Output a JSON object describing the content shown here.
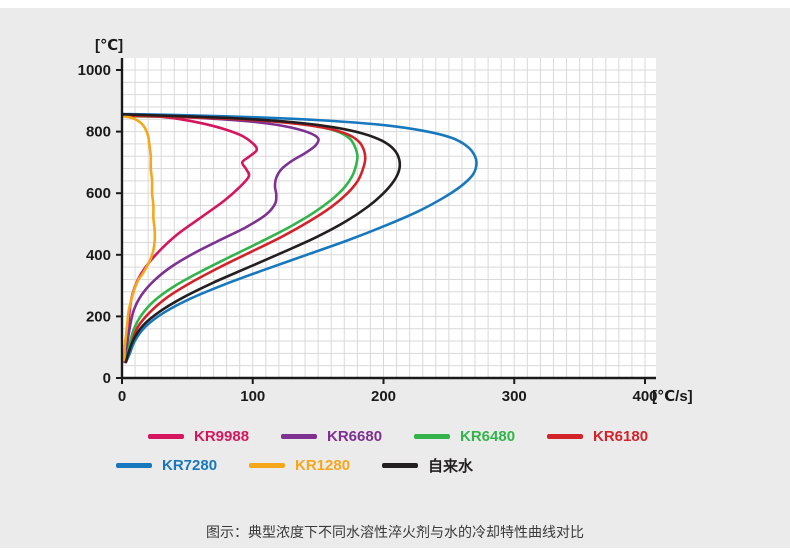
{
  "page": {
    "caption": "图示：典型浓度下不同水溶性淬火剂与水的冷却特性曲线对比",
    "background_color": "#ebebeb",
    "plot_background_color": "#ffffff"
  },
  "chart_data": {
    "type": "line",
    "title": "",
    "xlabel": "[℃/s]",
    "ylabel": "[℃]",
    "xlim": [
      0,
      400
    ],
    "ylim": [
      0,
      1000
    ],
    "x_ticks": [
      0,
      100,
      200,
      300,
      400
    ],
    "y_ticks": [
      0,
      200,
      400,
      600,
      800,
      1000
    ],
    "grid": {
      "on": true,
      "minor_x_step": 10,
      "minor_y_step": 40,
      "color": "#d9d9d9"
    },
    "axis_color": "#1a1a1a",
    "legend": {
      "position": "bottom",
      "rows": [
        [
          "KR9988",
          "KR6680",
          "KR6480",
          "KR6180"
        ],
        [
          "KR7280",
          "KR1280",
          "自来水"
        ]
      ]
    },
    "series": [
      {
        "name": "KR9988",
        "color": "#d5165f",
        "points": [
          [
            1,
            855
          ],
          [
            20,
            852
          ],
          [
            45,
            840
          ],
          [
            70,
            818
          ],
          [
            90,
            790
          ],
          [
            100,
            762
          ],
          [
            103,
            740
          ],
          [
            97,
            718
          ],
          [
            92,
            700
          ],
          [
            95,
            678
          ],
          [
            97,
            655
          ],
          [
            90,
            620
          ],
          [
            78,
            575
          ],
          [
            60,
            520
          ],
          [
            42,
            465
          ],
          [
            28,
            410
          ],
          [
            18,
            360
          ],
          [
            12,
            318
          ],
          [
            8,
            272
          ],
          [
            6,
            225
          ],
          [
            5,
            178
          ],
          [
            4,
            130
          ],
          [
            3,
            80
          ],
          [
            2,
            52
          ]
        ]
      },
      {
        "name": "KR6680",
        "color": "#7d3190",
        "points": [
          [
            1,
            855
          ],
          [
            30,
            850
          ],
          [
            65,
            843
          ],
          [
            100,
            832
          ],
          [
            125,
            817
          ],
          [
            142,
            798
          ],
          [
            150,
            778
          ],
          [
            148,
            755
          ],
          [
            140,
            730
          ],
          [
            130,
            705
          ],
          [
            122,
            678
          ],
          [
            118,
            650
          ],
          [
            117,
            622
          ],
          [
            118,
            595
          ],
          [
            117,
            565
          ],
          [
            110,
            530
          ],
          [
            95,
            490
          ],
          [
            75,
            448
          ],
          [
            55,
            405
          ],
          [
            38,
            362
          ],
          [
            25,
            318
          ],
          [
            15,
            270
          ],
          [
            9,
            220
          ],
          [
            6,
            165
          ],
          [
            4,
            110
          ],
          [
            3,
            55
          ]
        ]
      },
      {
        "name": "KR6480",
        "color": "#33b44a",
        "points": [
          [
            1,
            850
          ],
          [
            40,
            848
          ],
          [
            85,
            842
          ],
          [
            120,
            832
          ],
          [
            148,
            818
          ],
          [
            165,
            800
          ],
          [
            174,
            778
          ],
          [
            178,
            752
          ],
          [
            180,
            722
          ],
          [
            179,
            690
          ],
          [
            176,
            655
          ],
          [
            170,
            618
          ],
          [
            160,
            578
          ],
          [
            146,
            535
          ],
          [
            128,
            490
          ],
          [
            106,
            442
          ],
          [
            82,
            392
          ],
          [
            60,
            345
          ],
          [
            40,
            298
          ],
          [
            25,
            252
          ],
          [
            15,
            205
          ],
          [
            9,
            158
          ],
          [
            6,
            112
          ],
          [
            4,
            70
          ],
          [
            3,
            52
          ]
        ]
      },
      {
        "name": "KR6180",
        "color": "#d2232a",
        "points": [
          [
            1,
            852
          ],
          [
            45,
            847
          ],
          [
            90,
            840
          ],
          [
            128,
            828
          ],
          [
            155,
            812
          ],
          [
            172,
            792
          ],
          [
            181,
            768
          ],
          [
            185,
            740
          ],
          [
            186,
            710
          ],
          [
            184,
            675
          ],
          [
            180,
            638
          ],
          [
            172,
            598
          ],
          [
            160,
            555
          ],
          [
            143,
            508
          ],
          [
            122,
            458
          ],
          [
            98,
            408
          ],
          [
            74,
            358
          ],
          [
            52,
            308
          ],
          [
            34,
            260
          ],
          [
            21,
            212
          ],
          [
            12,
            165
          ],
          [
            8,
            120
          ],
          [
            5,
            75
          ],
          [
            3,
            52
          ]
        ]
      },
      {
        "name": "KR7280",
        "color": "#1878be",
        "points": [
          [
            1,
            857
          ],
          [
            50,
            853
          ],
          [
            105,
            846
          ],
          [
            155,
            836
          ],
          [
            198,
            822
          ],
          [
            230,
            803
          ],
          [
            252,
            780
          ],
          [
            264,
            752
          ],
          [
            270,
            720
          ],
          [
            271,
            690
          ],
          [
            268,
            658
          ],
          [
            259,
            622
          ],
          [
            245,
            583
          ],
          [
            226,
            540
          ],
          [
            201,
            494
          ],
          [
            172,
            446
          ],
          [
            140,
            398
          ],
          [
            108,
            350
          ],
          [
            78,
            303
          ],
          [
            52,
            257
          ],
          [
            32,
            212
          ],
          [
            18,
            167
          ],
          [
            10,
            122
          ],
          [
            6,
            80
          ],
          [
            3,
            52
          ]
        ]
      },
      {
        "name": "KR1280",
        "color": "#f6a71b",
        "points": [
          [
            1,
            850
          ],
          [
            6,
            846
          ],
          [
            11,
            838
          ],
          [
            15,
            826
          ],
          [
            18,
            808
          ],
          [
            20,
            785
          ],
          [
            21,
            755
          ],
          [
            22,
            720
          ],
          [
            22,
            680
          ],
          [
            23,
            640
          ],
          [
            23,
            600
          ],
          [
            24,
            560
          ],
          [
            24,
            520
          ],
          [
            25,
            480
          ],
          [
            25,
            445
          ],
          [
            24,
            415
          ],
          [
            22,
            388
          ],
          [
            19,
            362
          ],
          [
            16,
            340
          ],
          [
            13,
            322
          ],
          [
            11,
            305
          ],
          [
            9,
            282
          ],
          [
            7,
            252
          ],
          [
            5,
            215
          ],
          [
            4,
            175
          ],
          [
            3,
            135
          ],
          [
            2,
            95
          ],
          [
            2,
            58
          ]
        ]
      },
      {
        "name": "自来水",
        "color": "#231f20",
        "points": [
          [
            1,
            856
          ],
          [
            45,
            850
          ],
          [
            92,
            842
          ],
          [
            132,
            830
          ],
          [
            162,
            814
          ],
          [
            184,
            794
          ],
          [
            199,
            770
          ],
          [
            208,
            742
          ],
          [
            212,
            710
          ],
          [
            212,
            676
          ],
          [
            208,
            640
          ],
          [
            200,
            600
          ],
          [
            188,
            556
          ],
          [
            171,
            508
          ],
          [
            149,
            458
          ],
          [
            123,
            408
          ],
          [
            96,
            358
          ],
          [
            70,
            310
          ],
          [
            47,
            262
          ],
          [
            29,
            216
          ],
          [
            16,
            170
          ],
          [
            9,
            126
          ],
          [
            5,
            82
          ],
          [
            3,
            52
          ]
        ]
      }
    ]
  }
}
